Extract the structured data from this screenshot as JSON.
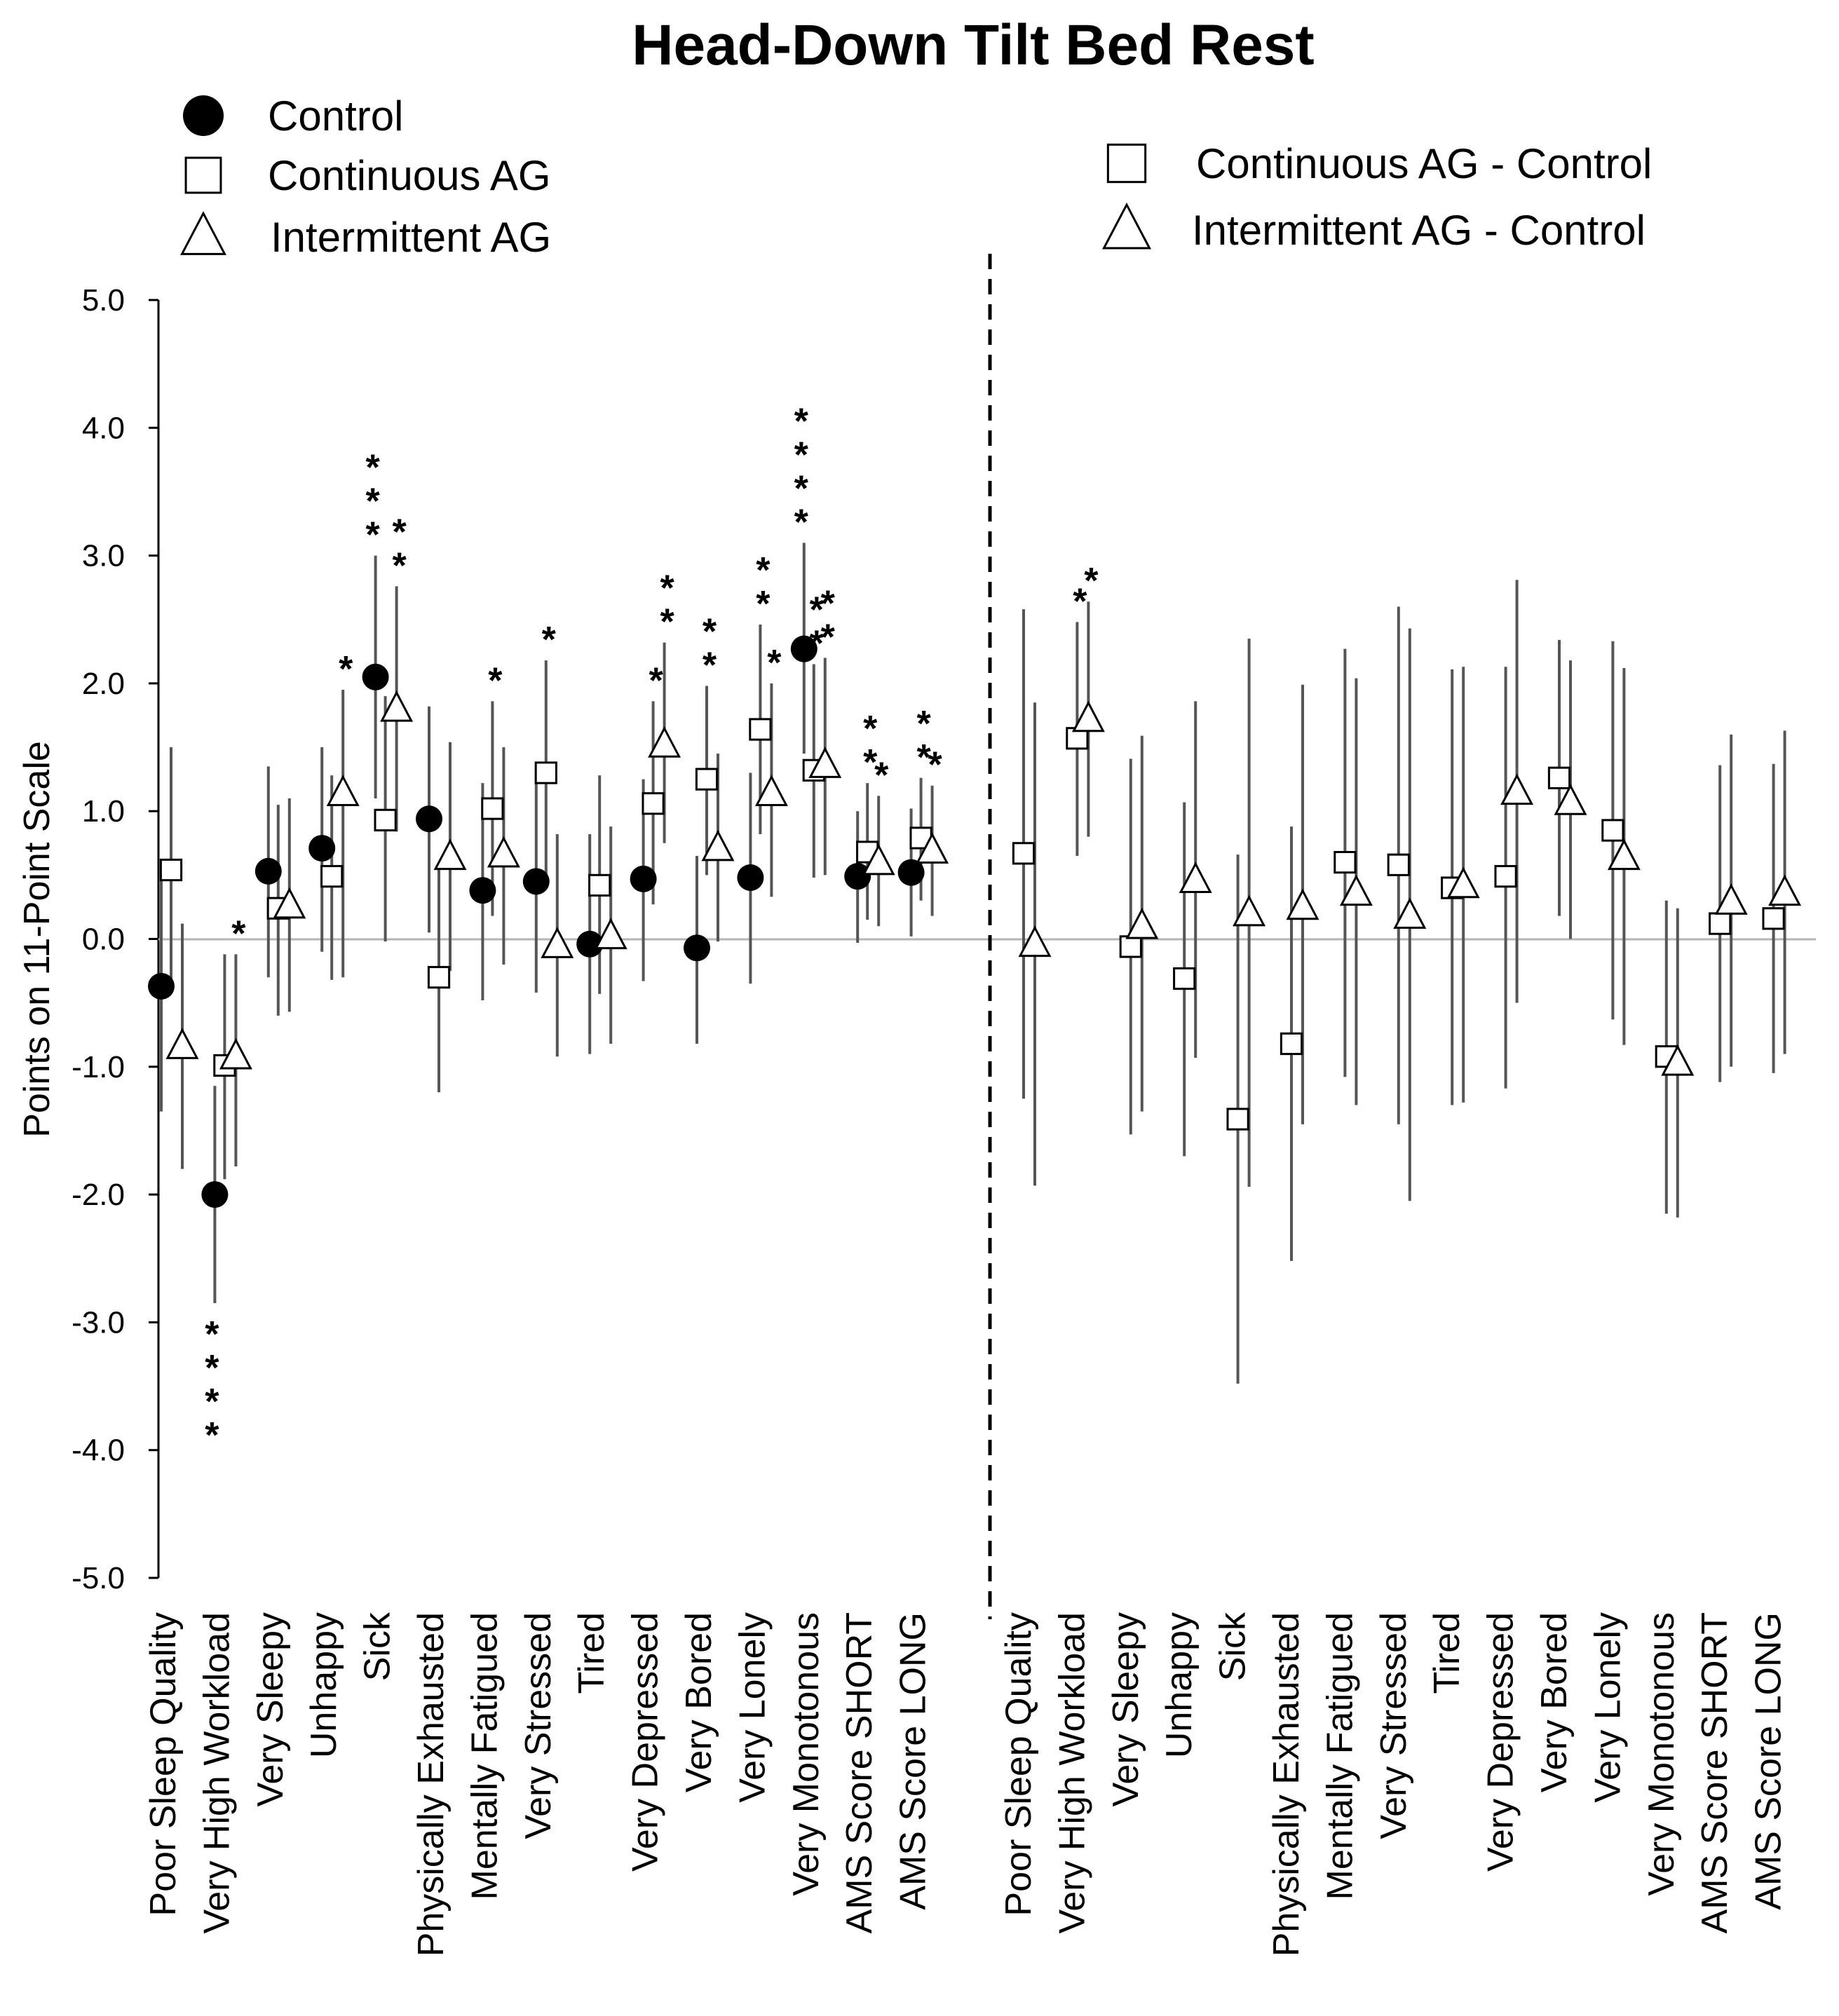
{
  "chart_data": {
    "type": "scatter",
    "title": "Head-Down Tilt Bed Rest",
    "ylabel": "Points on 11-Point Scale",
    "xlabel": "",
    "ylim": [
      -5.0,
      5.0
    ],
    "yticks": [
      "5.0",
      "4.0",
      "3.0",
      "2.0",
      "1.0",
      "0.0",
      "-1.0",
      "-2.0",
      "-3.0",
      "-4.0",
      "-5.0"
    ],
    "categories": [
      "Poor Sleep Quality",
      "Very High Workload",
      "Very Sleepy",
      "Unhappy",
      "Sick",
      "Physically Exhausted",
      "Mentally Fatigued",
      "Very Stressed",
      "Tired",
      "Very Depressed",
      "Very Bored",
      "Very Lonely",
      "Very Monotonous",
      "AMS Score SHORT",
      "AMS Score LONG"
    ],
    "legend_left": [
      {
        "marker": "circle",
        "label": "Control"
      },
      {
        "marker": "square",
        "label": "Continuous AG"
      },
      {
        "marker": "triangle",
        "label": "Intermittent AG"
      }
    ],
    "legend_right": [
      {
        "marker": "square",
        "label": "Continuous AG - Control"
      },
      {
        "marker": "triangle",
        "label": "Intermittent AG - Control"
      }
    ],
    "panels": [
      {
        "name": "absolute",
        "series": [
          {
            "name": "Control",
            "marker": "circle",
            "values": [
              -0.37,
              -2.0,
              0.53,
              0.71,
              2.05,
              0.94,
              0.38,
              0.45,
              -0.04,
              0.47,
              -0.07,
              0.48,
              2.27,
              0.49,
              0.52
            ],
            "lower": [
              -1.35,
              -2.85,
              -0.3,
              -0.1,
              1.1,
              0.05,
              -0.48,
              -0.42,
              -0.9,
              -0.33,
              -0.82,
              -0.35,
              1.45,
              -0.03,
              0.02
            ],
            "upper": [
              0.62,
              -1.15,
              1.35,
              1.5,
              3.0,
              1.82,
              1.22,
              1.3,
              0.82,
              1.25,
              0.65,
              1.3,
              3.1,
              1.0,
              1.02
            ],
            "stars": [
              "",
              "****",
              "",
              "",
              "***",
              "",
              "",
              "",
              "",
              "",
              "",
              "",
              "****",
              "",
              ""
            ]
          },
          {
            "name": "Continuous AG",
            "marker": "square",
            "values": [
              0.54,
              -0.99,
              0.24,
              0.49,
              0.93,
              -0.3,
              1.02,
              1.3,
              0.42,
              1.06,
              1.25,
              1.64,
              1.32,
              0.68,
              0.79
            ],
            "lower": [
              -0.42,
              -1.88,
              -0.6,
              -0.32,
              -0.02,
              -1.2,
              0.18,
              0.45,
              -0.43,
              0.27,
              0.5,
              0.82,
              0.48,
              0.15,
              0.3
            ],
            "upper": [
              1.5,
              -0.12,
              1.05,
              1.28,
              1.9,
              0.58,
              1.86,
              2.18,
              1.28,
              1.86,
              1.98,
              2.46,
              2.15,
              1.22,
              1.26
            ],
            "stars": [
              "",
              "",
              "",
              "",
              "",
              "",
              "*",
              "*",
              "",
              "*",
              "**",
              "**",
              "**",
              "**",
              "**"
            ]
          },
          {
            "name": "Intermittent AG",
            "marker": "triangle",
            "values": [
              -0.84,
              -0.92,
              0.26,
              1.14,
              1.8,
              0.64,
              0.66,
              -0.05,
              0.02,
              1.52,
              0.71,
              1.14,
              1.36,
              0.6,
              0.69
            ],
            "lower": [
              -1.8,
              -1.78,
              -0.57,
              -0.3,
              0.84,
              -0.25,
              -0.2,
              -0.92,
              -0.82,
              0.75,
              -0.02,
              0.33,
              0.5,
              0.1,
              0.18
            ],
            "upper": [
              0.12,
              -0.12,
              1.1,
              1.95,
              2.76,
              1.54,
              1.5,
              0.82,
              0.88,
              2.32,
              1.45,
              2.0,
              2.2,
              1.12,
              1.2
            ],
            "stars": [
              "",
              "*",
              "",
              "*",
              "**",
              "",
              "",
              "",
              "",
              "**",
              "",
              "*",
              "**",
              "*",
              "*"
            ]
          }
        ]
      },
      {
        "name": "difference",
        "series": [
          {
            "name": "Continuous AG - Control",
            "marker": "square",
            "values": [
              0.67,
              1.57,
              -0.06,
              -0.31,
              -1.41,
              -0.82,
              0.6,
              0.58,
              0.4,
              0.49,
              1.26,
              0.85,
              -0.92,
              0.12,
              0.16
            ],
            "lower": [
              -1.25,
              0.65,
              -1.53,
              -1.7,
              -3.48,
              -2.52,
              -1.08,
              -1.45,
              -1.3,
              -1.17,
              0.18,
              -0.63,
              -2.15,
              -1.12,
              -1.05
            ],
            "upper": [
              2.58,
              2.48,
              1.41,
              1.07,
              0.66,
              0.88,
              2.27,
              2.6,
              2.11,
              2.13,
              2.34,
              2.33,
              0.3,
              1.36,
              1.37
            ],
            "stars": [
              "",
              "*",
              "",
              "",
              "",
              "",
              "",
              "",
              "",
              "",
              "",
              "",
              "",
              "",
              ""
            ]
          },
          {
            "name": "Intermittent AG - Control",
            "marker": "triangle",
            "values": [
              -0.04,
              1.72,
              0.1,
              0.46,
              0.2,
              0.25,
              0.36,
              0.18,
              0.42,
              1.15,
              1.07,
              0.64,
              -0.97,
              0.29,
              0.36
            ],
            "lower": [
              -1.93,
              0.8,
              -1.35,
              -0.93,
              -1.94,
              -1.45,
              -1.3,
              -2.05,
              -1.28,
              -0.5,
              0.0,
              -0.83,
              -2.18,
              -1.0,
              -0.9
            ],
            "upper": [
              1.85,
              2.64,
              1.59,
              1.86,
              2.35,
              1.99,
              2.04,
              2.43,
              2.13,
              2.81,
              2.18,
              2.12,
              0.24,
              1.6,
              1.63
            ],
            "stars": [
              "",
              "*",
              "",
              "",
              "",
              "",
              "",
              "",
              "",
              "",
              "",
              "",
              "",
              "",
              ""
            ]
          }
        ]
      }
    ]
  }
}
